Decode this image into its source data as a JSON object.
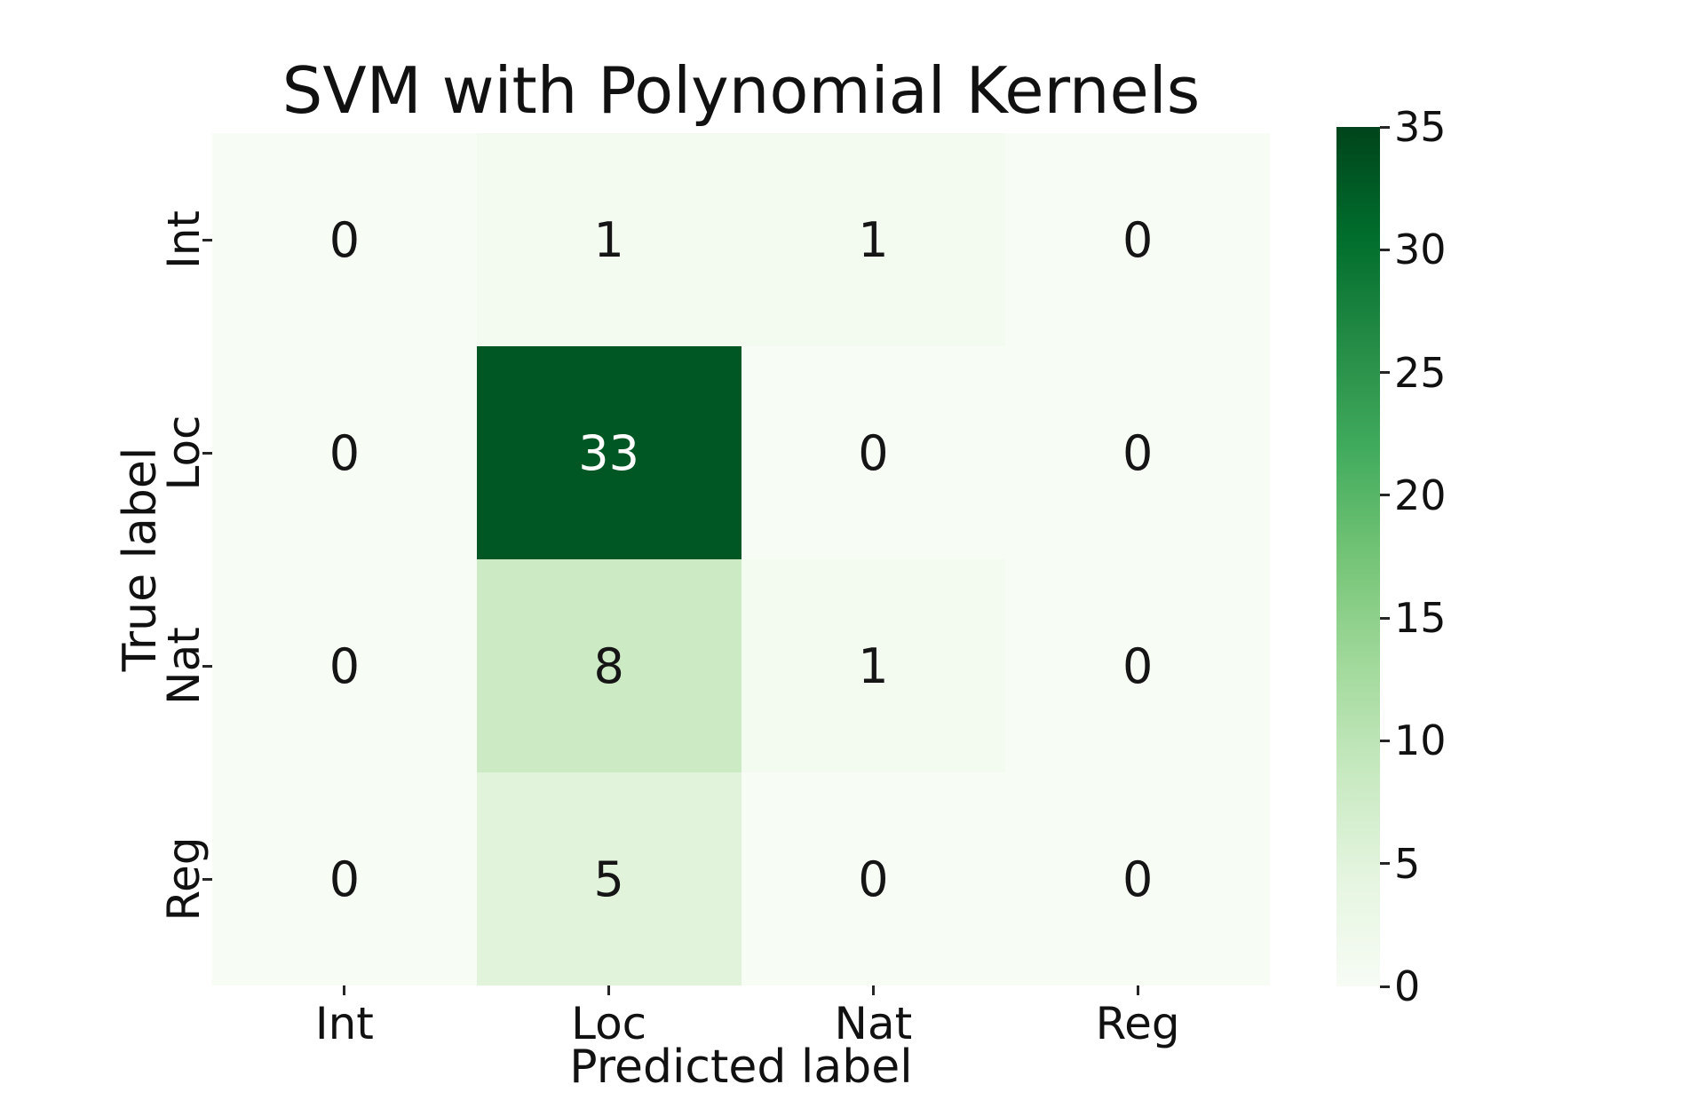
{
  "title": "SVM with Polynomial Kernels",
  "chart_data": {
    "type": "heatmap",
    "title": "SVM with Polynomial Kernels",
    "xlabel": "Predicted label",
    "ylabel": "True label",
    "x_categories": [
      "Int",
      "Loc",
      "Nat",
      "Reg"
    ],
    "y_categories": [
      "Int",
      "Loc",
      "Nat",
      "Reg"
    ],
    "matrix": [
      [
        0,
        1,
        1,
        0
      ],
      [
        0,
        33,
        0,
        0
      ],
      [
        0,
        8,
        1,
        0
      ],
      [
        0,
        5,
        0,
        0
      ]
    ],
    "vmin": 0,
    "vmax": 35,
    "grid": false,
    "legend": "none",
    "colorbar": {
      "position": "right",
      "ticks": [
        0,
        5,
        10,
        15,
        20,
        25,
        30,
        35
      ]
    },
    "colormap": {
      "name": "Greens",
      "stops": [
        "#f7fcf5",
        "#e5f5e0",
        "#c7e9c0",
        "#a1d99b",
        "#74c476",
        "#41ab5d",
        "#238b45",
        "#006d2c",
        "#00441b"
      ]
    },
    "annotation_colors": {
      "on_light": "#151515",
      "on_dark": "#ffffff"
    },
    "tick_color": "#262626"
  }
}
